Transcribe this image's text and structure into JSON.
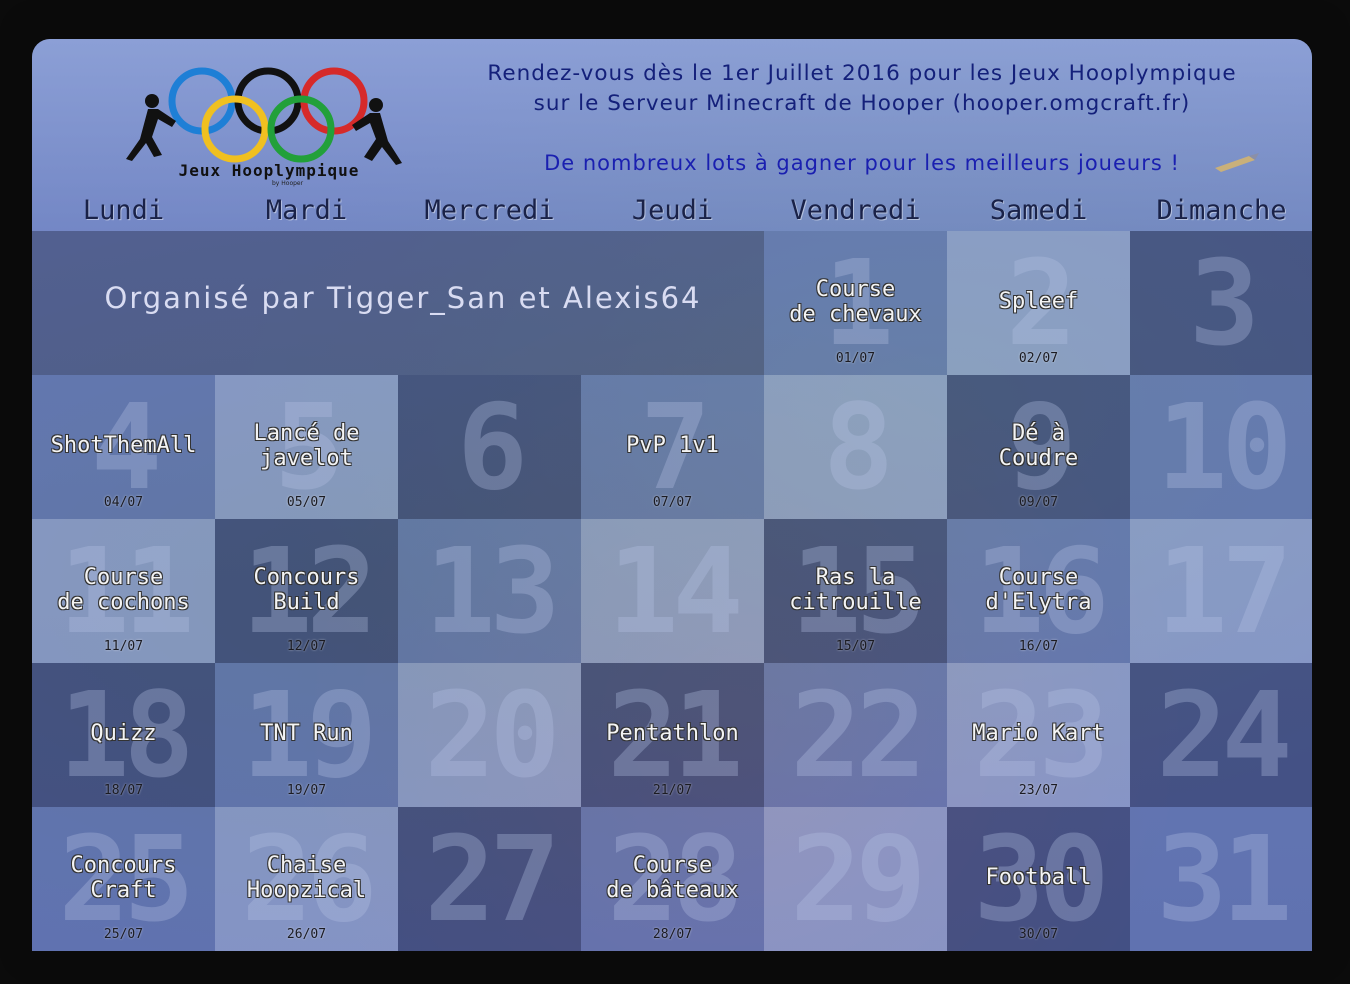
{
  "header": {
    "line1": "Rendez-vous dès le 1er Juillet 2016 pour les Jeux Hooplympique",
    "line2": "sur le Serveur Minecraft de Hooper (hooper.omgcraft.fr)",
    "line3": "De nombreux lots à gagner pour les meilleurs joueurs !",
    "logo_text": "Jeux Hooplympique",
    "logo_sub": "by Hooper",
    "colors": {
      "headline": "#14207a",
      "subline": "#1a1fb0"
    }
  },
  "days": [
    "Lundi",
    "Mardi",
    "Mercredi",
    "Jeudi",
    "Vendredi",
    "Samedi",
    "Dimanche"
  ],
  "organizer": "Organisé par Tigger_San et Alexis64",
  "weeks": [
    [
      {
        "n": "",
        "title": "",
        "date": ""
      },
      {
        "n": "",
        "title": "",
        "date": ""
      },
      {
        "n": "",
        "title": "",
        "date": ""
      },
      {
        "n": "",
        "title": "",
        "date": ""
      },
      {
        "n": "1",
        "title": "Course\nde chevaux",
        "date": "01/07"
      },
      {
        "n": "2",
        "title": "Spleef",
        "date": "02/07"
      },
      {
        "n": "3",
        "title": "",
        "date": ""
      }
    ],
    [
      {
        "n": "4",
        "title": "ShotThemAll",
        "date": "04/07"
      },
      {
        "n": "5",
        "title": "Lancé de\njavelot",
        "date": "05/07"
      },
      {
        "n": "6",
        "title": "",
        "date": ""
      },
      {
        "n": "7",
        "title": "PvP 1v1",
        "date": "07/07"
      },
      {
        "n": "8",
        "title": "",
        "date": ""
      },
      {
        "n": "9",
        "title": "Dé à\nCoudre",
        "date": "09/07"
      },
      {
        "n": "10",
        "title": "",
        "date": ""
      }
    ],
    [
      {
        "n": "11",
        "title": "Course\nde cochons",
        "date": "11/07"
      },
      {
        "n": "12",
        "title": "Concours\nBuild",
        "date": "12/07"
      },
      {
        "n": "13",
        "title": "",
        "date": ""
      },
      {
        "n": "14",
        "title": "",
        "date": ""
      },
      {
        "n": "15",
        "title": "Ras la\ncitrouille",
        "date": "15/07"
      },
      {
        "n": "16",
        "title": "Course\nd'Elytra",
        "date": "16/07"
      },
      {
        "n": "17",
        "title": "",
        "date": ""
      }
    ],
    [
      {
        "n": "18",
        "title": "Quizz",
        "date": "18/07"
      },
      {
        "n": "19",
        "title": "TNT Run",
        "date": "19/07"
      },
      {
        "n": "20",
        "title": "",
        "date": ""
      },
      {
        "n": "21",
        "title": "Pentathlon",
        "date": "21/07"
      },
      {
        "n": "22",
        "title": "",
        "date": ""
      },
      {
        "n": "23",
        "title": "Mario Kart",
        "date": "23/07"
      },
      {
        "n": "24",
        "title": "",
        "date": ""
      }
    ],
    [
      {
        "n": "25",
        "title": "Concours\nCraft",
        "date": "25/07"
      },
      {
        "n": "26",
        "title": "Chaise\nHoopzical",
        "date": "26/07"
      },
      {
        "n": "27",
        "title": "",
        "date": ""
      },
      {
        "n": "28",
        "title": "Course\nde bâteaux",
        "date": "28/07"
      },
      {
        "n": "29",
        "title": "",
        "date": ""
      },
      {
        "n": "30",
        "title": "Football",
        "date": "30/07"
      },
      {
        "n": "31",
        "title": "",
        "date": ""
      }
    ]
  ]
}
